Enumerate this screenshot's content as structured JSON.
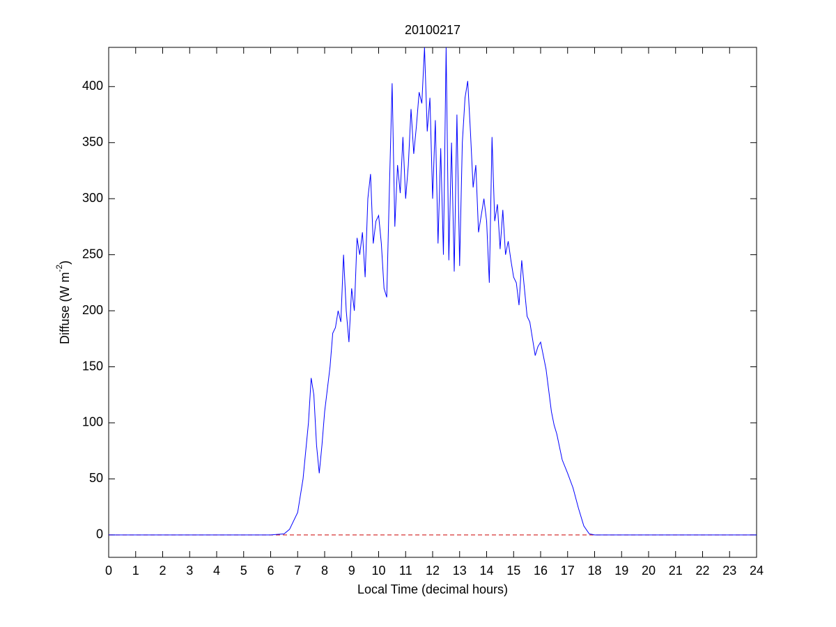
{
  "chart_data": {
    "type": "line",
    "title": "20100217",
    "xlabel": "Local Time (decimal hours)",
    "ylabel": {
      "text": "Diffuse (W m",
      "superscript": "-2",
      "suffix": ")"
    },
    "x": [
      0,
      6.0,
      6.5,
      6.7,
      7.0,
      7.2,
      7.4,
      7.5,
      7.6,
      7.7,
      7.8,
      7.9,
      8.0,
      8.1,
      8.2,
      8.3,
      8.4,
      8.5,
      8.6,
      8.7,
      8.8,
      8.9,
      9.0,
      9.1,
      9.2,
      9.3,
      9.4,
      9.5,
      9.6,
      9.7,
      9.8,
      9.9,
      10.0,
      10.1,
      10.2,
      10.3,
      10.4,
      10.5,
      10.6,
      10.7,
      10.8,
      10.9,
      11.0,
      11.1,
      11.2,
      11.3,
      11.4,
      11.5,
      11.6,
      11.7,
      11.8,
      11.9,
      12.0,
      12.1,
      12.2,
      12.3,
      12.4,
      12.5,
      12.6,
      12.7,
      12.8,
      12.9,
      13.0,
      13.1,
      13.2,
      13.3,
      13.4,
      13.5,
      13.6,
      13.7,
      13.8,
      13.9,
      14.0,
      14.1,
      14.2,
      14.3,
      14.4,
      14.5,
      14.6,
      14.7,
      14.8,
      14.9,
      15.0,
      15.1,
      15.2,
      15.3,
      15.4,
      15.5,
      15.6,
      15.7,
      15.8,
      15.9,
      16.0,
      16.2,
      16.4,
      16.5,
      16.6,
      16.8,
      17.0,
      17.2,
      17.4,
      17.6,
      17.8,
      18.0,
      24.0
    ],
    "series": [
      {
        "color": "#0000ff",
        "values": [
          0,
          0,
          1,
          5,
          20,
          50,
          100,
          140,
          125,
          80,
          55,
          80,
          110,
          130,
          150,
          180,
          185,
          200,
          190,
          250,
          200,
          172,
          220,
          200,
          265,
          250,
          270,
          230,
          300,
          322,
          260,
          280,
          285,
          260,
          220,
          212,
          310,
          403,
          275,
          330,
          305,
          355,
          300,
          330,
          380,
          340,
          365,
          395,
          385,
          435,
          360,
          390,
          300,
          370,
          260,
          345,
          250,
          435,
          245,
          350,
          235,
          375,
          240,
          350,
          390,
          405,
          360,
          310,
          330,
          270,
          285,
          300,
          280,
          225,
          355,
          280,
          295,
          255,
          290,
          250,
          262,
          245,
          230,
          225,
          205,
          245,
          220,
          195,
          190,
          175,
          160,
          168,
          172,
          148,
          110,
          98,
          90,
          67,
          55,
          42,
          24,
          8,
          1,
          0,
          0
        ]
      }
    ],
    "reference_line": {
      "value": 0,
      "color": "#cc0000"
    },
    "xlim": [
      0,
      24
    ],
    "xticks": [
      0,
      1,
      2,
      3,
      4,
      5,
      6,
      7,
      8,
      9,
      10,
      11,
      12,
      13,
      14,
      15,
      16,
      17,
      18,
      19,
      20,
      21,
      22,
      23,
      24
    ],
    "ylim": [
      -20,
      435
    ],
    "yticks": [
      0,
      50,
      100,
      150,
      200,
      250,
      300,
      350,
      400
    ]
  }
}
